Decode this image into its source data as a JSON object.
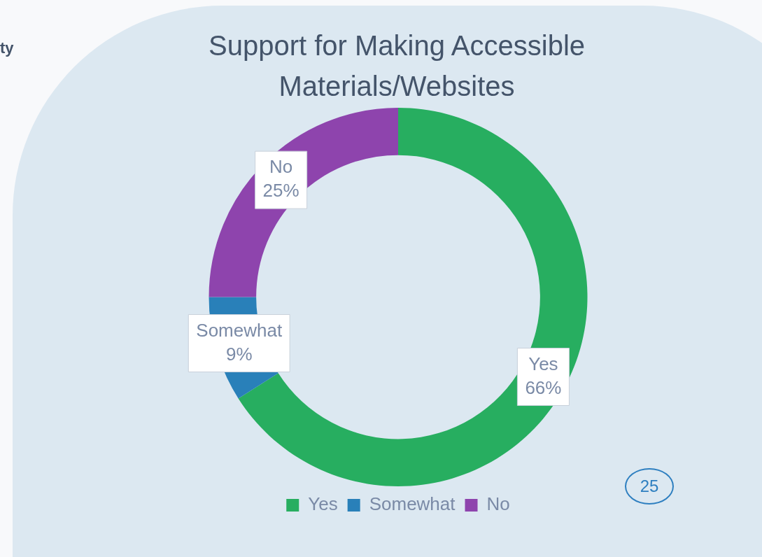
{
  "chart_data": {
    "type": "donut",
    "title": "Support for Making Accessible Materials/Websites",
    "categories": [
      "Yes",
      "Somewhat",
      "No"
    ],
    "values": [
      66,
      9,
      25
    ],
    "value_labels": [
      "66%",
      "9%",
      "25%"
    ],
    "colors": [
      "#27ae60",
      "#2980b9",
      "#8e44ad"
    ],
    "legend": "bottom",
    "annotations": [
      "ty",
      "25"
    ]
  }
}
